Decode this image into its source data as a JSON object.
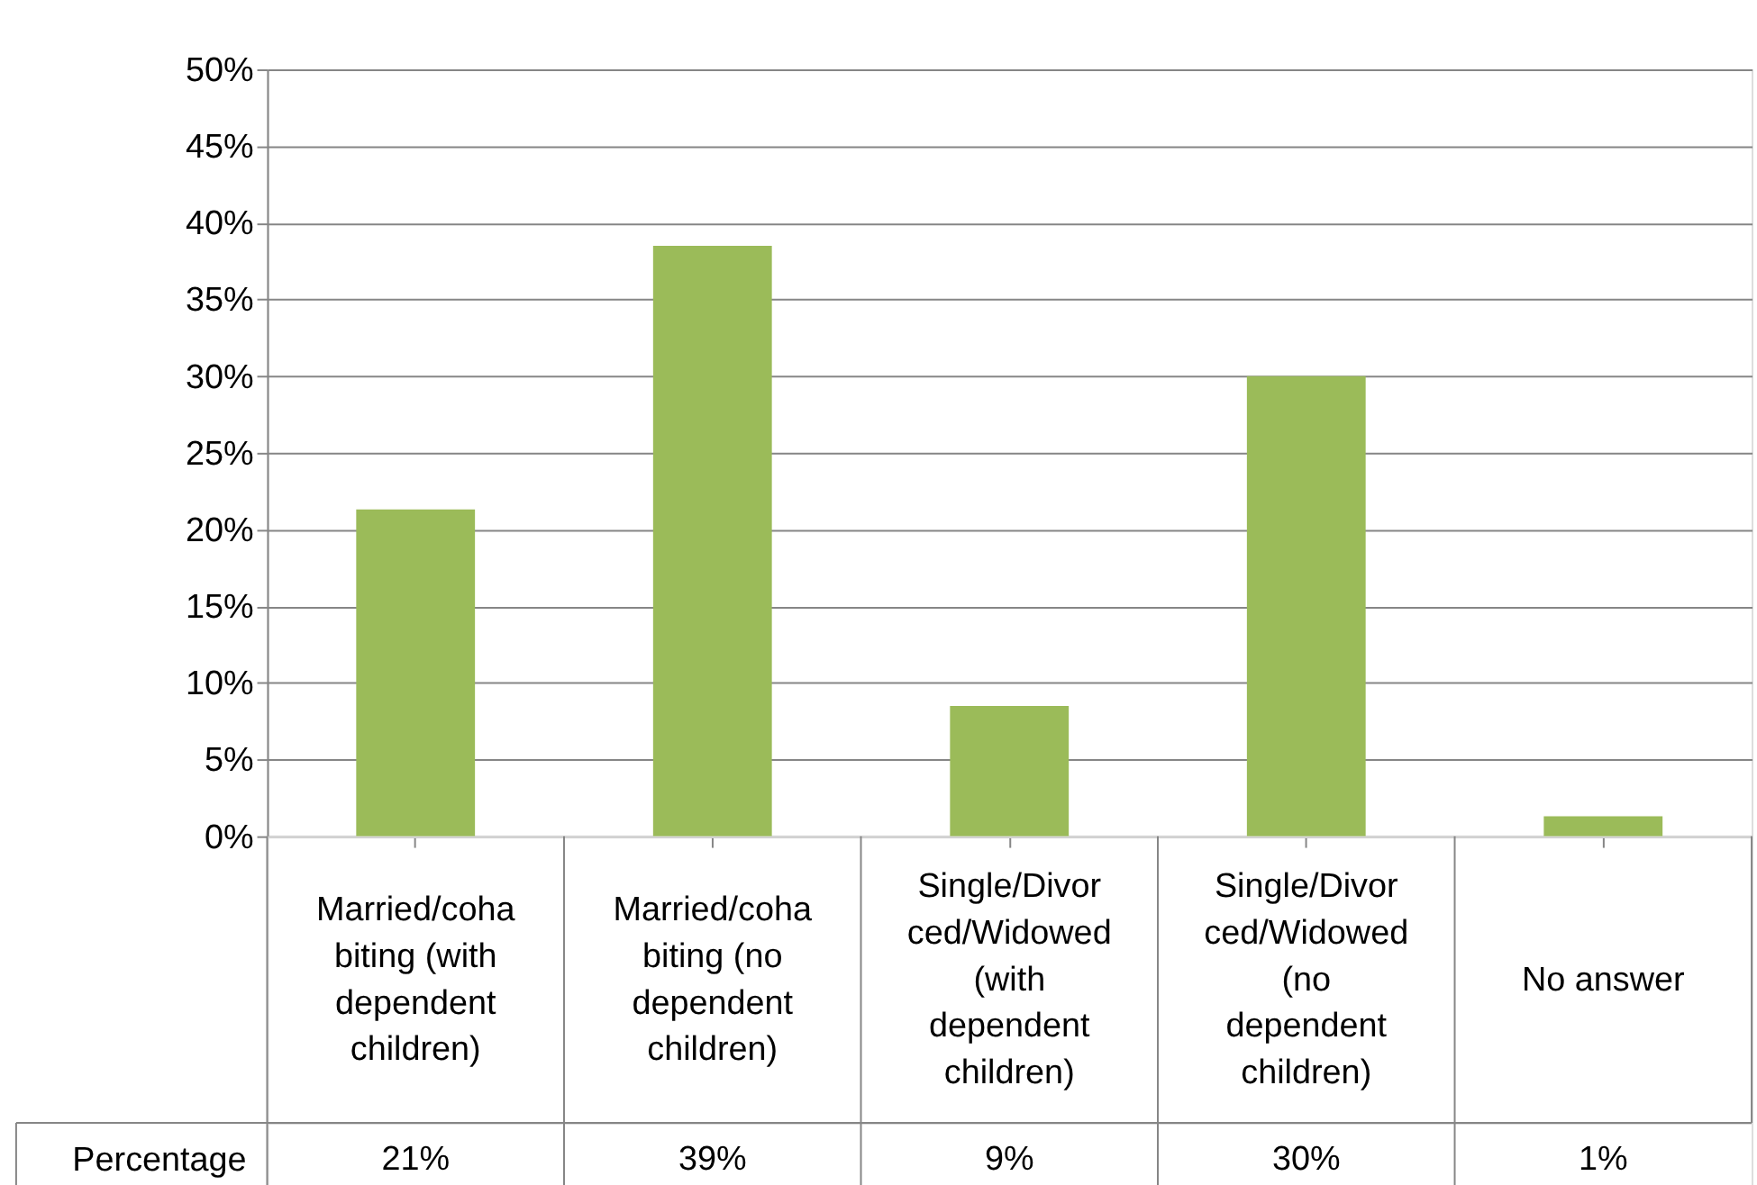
{
  "chart_data": {
    "type": "bar",
    "categories": [
      "Married/cohabiting (with dependent children)",
      "Married/cohabiting (no dependent children)",
      "Single/Divorced/Widowed (with dependent children)",
      "Single/Divorced/Widowed (no dependent children)",
      "No answer"
    ],
    "series": [
      {
        "name": "Percentage",
        "color": "#9bbb59",
        "values": [
          21.3,
          38.5,
          8.5,
          30,
          1.3
        ],
        "value_labels": [
          "21%",
          "39%",
          "9%",
          "30%",
          "1%"
        ]
      }
    ],
    "ylim": [
      0,
      50
    ],
    "yticks": [
      {
        "value": 0,
        "label": "0%"
      },
      {
        "value": 5,
        "label": "5%"
      },
      {
        "value": 10,
        "label": "10%"
      },
      {
        "value": 15,
        "label": "15%"
      },
      {
        "value": 20,
        "label": "20%"
      },
      {
        "value": 25,
        "label": "25%"
      },
      {
        "value": 30,
        "label": "30%"
      },
      {
        "value": 35,
        "label": "35%"
      },
      {
        "value": 40,
        "label": "40%"
      },
      {
        "value": 45,
        "label": "45%"
      },
      {
        "value": 50,
        "label": "50%"
      }
    ],
    "grid": "y",
    "legend": false
  }
}
